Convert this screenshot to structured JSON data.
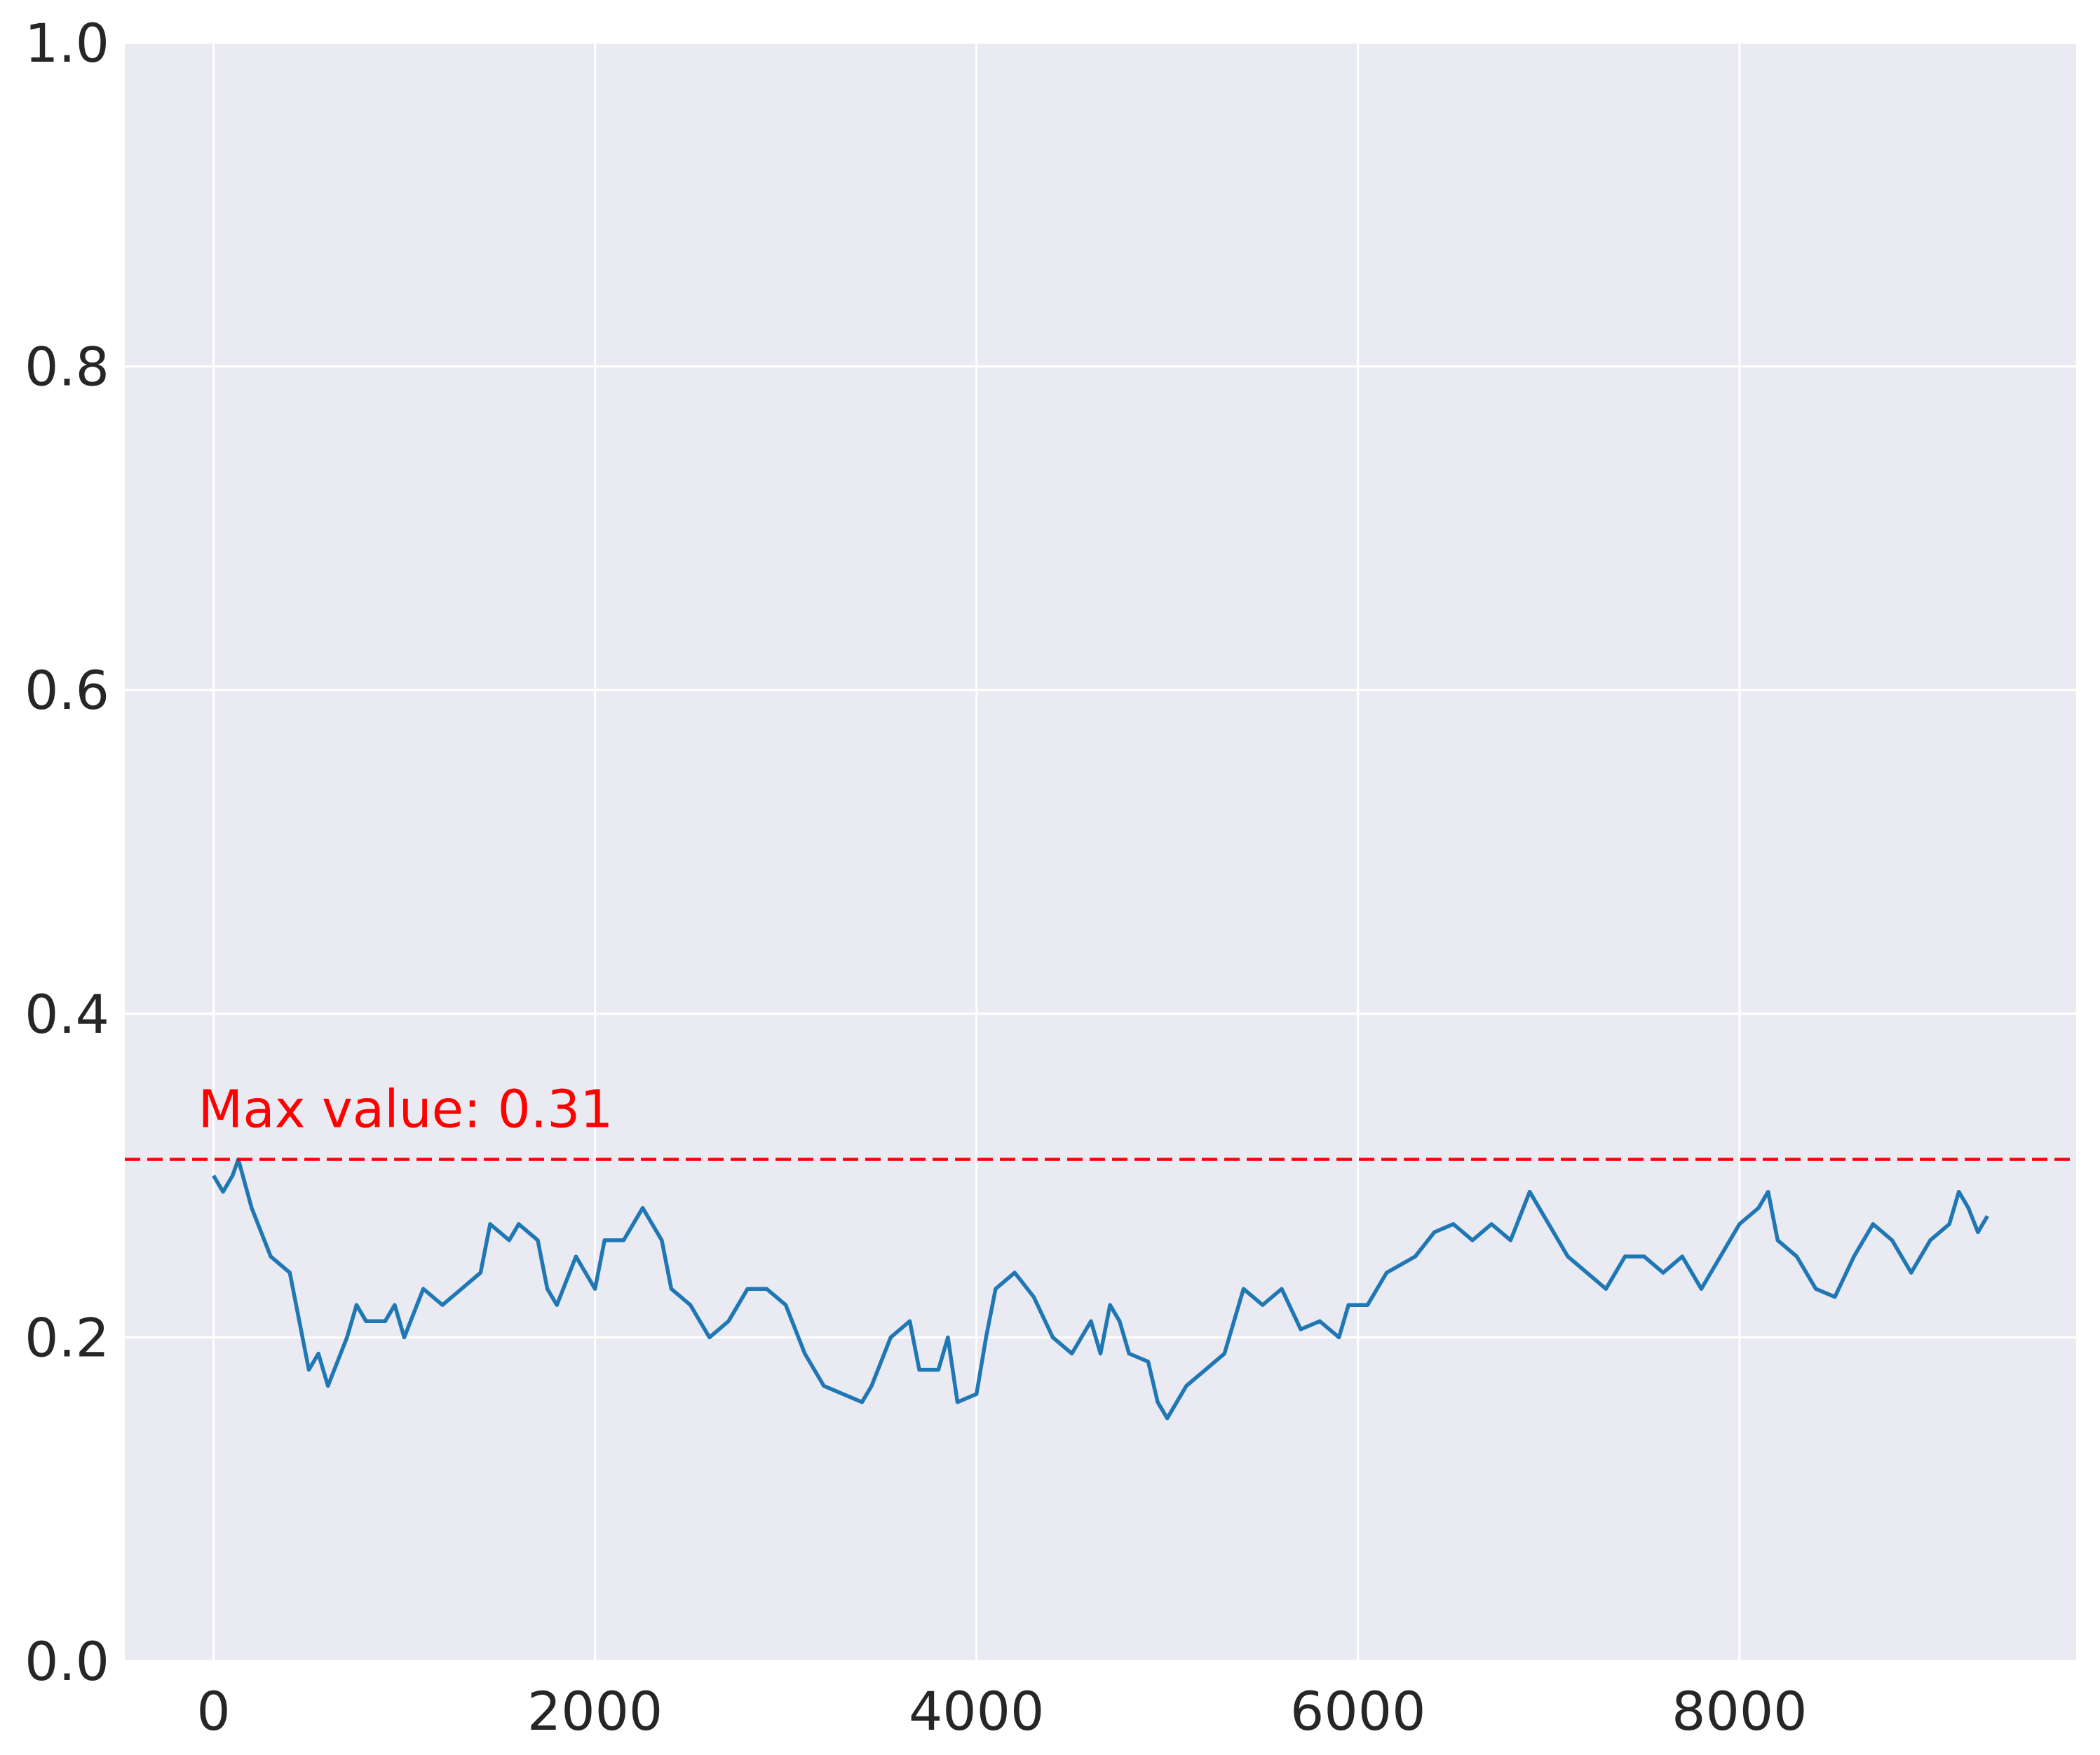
{
  "chart_data": {
    "type": "line",
    "x": [
      0,
      50,
      100,
      130,
      200,
      300,
      400,
      450,
      500,
      550,
      600,
      700,
      750,
      800,
      900,
      950,
      1000,
      1100,
      1200,
      1300,
      1400,
      1450,
      1550,
      1600,
      1700,
      1750,
      1800,
      1900,
      2000,
      2050,
      2150,
      2250,
      2350,
      2400,
      2500,
      2600,
      2700,
      2800,
      2900,
      3000,
      3100,
      3200,
      3300,
      3400,
      3450,
      3550,
      3650,
      3700,
      3800,
      3850,
      3900,
      4000,
      4050,
      4100,
      4200,
      4300,
      4400,
      4500,
      4600,
      4650,
      4700,
      4750,
      4800,
      4900,
      4950,
      5000,
      5100,
      5200,
      5300,
      5400,
      5500,
      5600,
      5700,
      5800,
      5900,
      5950,
      6050,
      6150,
      6300,
      6400,
      6500,
      6600,
      6700,
      6800,
      6900,
      7000,
      7100,
      7200,
      7300,
      7400,
      7500,
      7600,
      7700,
      7800,
      7900,
      8000,
      8100,
      8150,
      8200,
      8300,
      8400,
      8500,
      8600,
      8700,
      8800,
      8900,
      9000,
      9100,
      9150,
      9200,
      9250,
      9300
    ],
    "values": [
      0.3,
      0.29,
      0.3,
      0.31,
      0.28,
      0.25,
      0.24,
      0.21,
      0.18,
      0.19,
      0.17,
      0.2,
      0.22,
      0.21,
      0.21,
      0.22,
      0.2,
      0.23,
      0.22,
      0.23,
      0.24,
      0.27,
      0.26,
      0.27,
      0.26,
      0.23,
      0.22,
      0.25,
      0.23,
      0.26,
      0.26,
      0.28,
      0.26,
      0.23,
      0.22,
      0.2,
      0.21,
      0.23,
      0.23,
      0.22,
      0.19,
      0.17,
      0.165,
      0.16,
      0.17,
      0.2,
      0.21,
      0.18,
      0.18,
      0.2,
      0.16,
      0.165,
      0.2,
      0.23,
      0.24,
      0.225,
      0.2,
      0.19,
      0.21,
      0.19,
      0.22,
      0.21,
      0.19,
      0.185,
      0.16,
      0.15,
      0.17,
      0.18,
      0.19,
      0.23,
      0.22,
      0.23,
      0.205,
      0.21,
      0.2,
      0.22,
      0.22,
      0.24,
      0.25,
      0.265,
      0.27,
      0.26,
      0.27,
      0.26,
      0.29,
      0.27,
      0.25,
      0.24,
      0.23,
      0.25,
      0.25,
      0.24,
      0.25,
      0.23,
      0.25,
      0.27,
      0.28,
      0.29,
      0.26,
      0.25,
      0.23,
      0.225,
      0.25,
      0.27,
      0.26,
      0.24,
      0.26,
      0.27,
      0.29,
      0.28,
      0.265,
      0.275
    ],
    "color": "#1f77b4",
    "xlim": [
      -465,
      9765
    ],
    "xticks": [
      0,
      2000,
      4000,
      6000,
      8000
    ],
    "ylim": [
      0,
      1
    ],
    "yticks": [
      {
        "value": 0,
        "label": "0.0"
      },
      0.2,
      0.4,
      0.6,
      0.8,
      {
        "value": 1,
        "label": "1.0"
      }
    ],
    "grid": true,
    "hline": {
      "value": 0.31,
      "color": "red",
      "label": "Max value: 0.31"
    }
  }
}
